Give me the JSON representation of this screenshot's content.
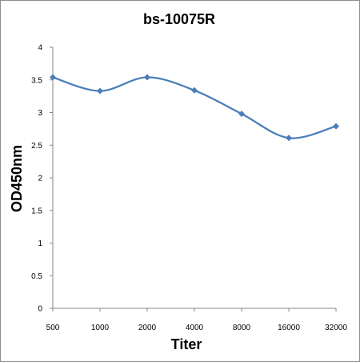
{
  "chart_data": {
    "type": "line",
    "title": "bs-10075R",
    "xlabel": "Titer",
    "ylabel": "OD450nm",
    "categories": [
      "500",
      "1000",
      "2000",
      "4000",
      "8000",
      "16000",
      "32000"
    ],
    "series": [
      {
        "values": [
          3.54,
          3.33,
          3.54,
          3.34,
          2.98,
          2.61,
          2.79
        ]
      }
    ],
    "ylim": [
      0,
      4
    ],
    "yticks": [
      "0",
      "0.5",
      "1",
      "1.5",
      "2",
      "2.5",
      "3",
      "3.5",
      "4"
    ],
    "grid": false,
    "legend": "none",
    "colors": {
      "line": "#4a7ebb",
      "axis": "#868686"
    }
  }
}
